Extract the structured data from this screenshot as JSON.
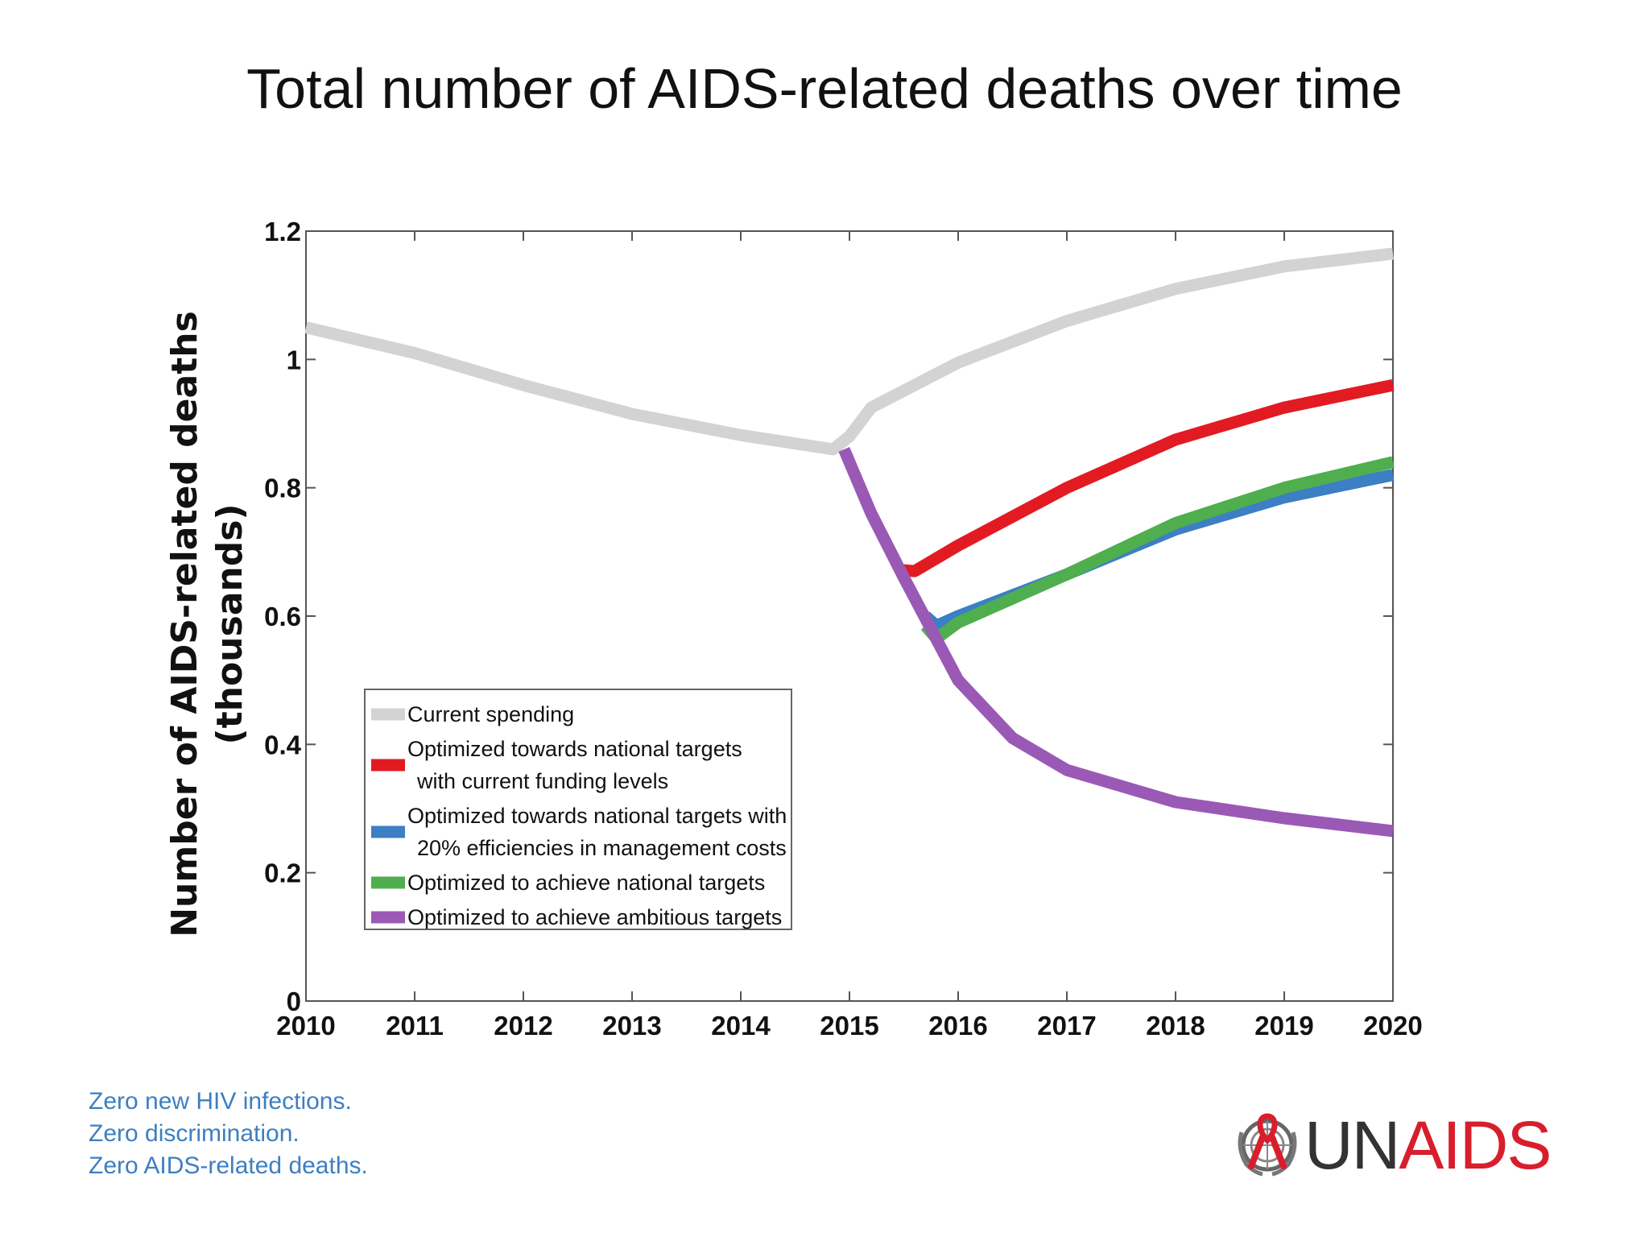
{
  "slide_title": "Total number of AIDS-related deaths over time",
  "chart_data": {
    "type": "line",
    "ylabel": [
      "Number of AIDS-related deaths",
      "(thousands)"
    ],
    "xlim": [
      2010,
      2020
    ],
    "ylim": [
      0,
      1.2
    ],
    "x_ticks": [
      "2010",
      "2011",
      "2012",
      "2013",
      "2014",
      "2015",
      "2016",
      "2017",
      "2018",
      "2019",
      "2020"
    ],
    "y_ticks": [
      "0",
      "0.2",
      "0.4",
      "0.6",
      "0.8",
      "1",
      "1.2"
    ],
    "legend_position": "lower-left",
    "series": [
      {
        "name": "Current spending",
        "color": "#d3d3d3",
        "points": [
          [
            2010,
            1.05
          ],
          [
            2011,
            1.01
          ],
          [
            2012,
            0.96
          ],
          [
            2013,
            0.915
          ],
          [
            2014,
            0.882
          ],
          [
            2014.85,
            0.86
          ],
          [
            2015,
            0.88
          ],
          [
            2015.2,
            0.925
          ],
          [
            2016,
            0.995
          ],
          [
            2017,
            1.06
          ],
          [
            2018,
            1.11
          ],
          [
            2019,
            1.145
          ],
          [
            2020,
            1.165
          ]
        ]
      },
      {
        "name": "Optimized towards national targets\nwith current funding levels",
        "color": "#e21b23",
        "points": [
          [
            2015.45,
            0.672
          ],
          [
            2015.6,
            0.67
          ],
          [
            2016,
            0.71
          ],
          [
            2017,
            0.8
          ],
          [
            2018,
            0.875
          ],
          [
            2019,
            0.925
          ],
          [
            2020,
            0.96
          ]
        ]
      },
      {
        "name": "Optimized towards national targets with\n20% efficiencies in management costs",
        "color": "#3c7fc4",
        "points": [
          [
            2015.7,
            0.6
          ],
          [
            2015.8,
            0.585
          ],
          [
            2016,
            0.6
          ],
          [
            2017,
            0.665
          ],
          [
            2018,
            0.735
          ],
          [
            2019,
            0.785
          ],
          [
            2020,
            0.82
          ]
        ]
      },
      {
        "name": "Optimized to achieve national targets",
        "color": "#4fae4e",
        "points": [
          [
            2015.7,
            0.585
          ],
          [
            2015.8,
            0.565
          ],
          [
            2016,
            0.59
          ],
          [
            2017,
            0.665
          ],
          [
            2018,
            0.745
          ],
          [
            2019,
            0.8
          ],
          [
            2020,
            0.84
          ]
        ]
      },
      {
        "name": "Optimized to achieve ambitious targets",
        "color": "#9b59b6",
        "points": [
          [
            2014.95,
            0.86
          ],
          [
            2015.2,
            0.76
          ],
          [
            2015.5,
            0.66
          ],
          [
            2016,
            0.5
          ],
          [
            2016.5,
            0.41
          ],
          [
            2017,
            0.36
          ],
          [
            2018,
            0.31
          ],
          [
            2019,
            0.285
          ],
          [
            2020,
            0.265
          ]
        ]
      }
    ]
  },
  "tagline": [
    "Zero new HIV infections.",
    "Zero discrimination.",
    "Zero AIDS-related deaths."
  ],
  "logo": {
    "un": "UN",
    "aids": "AIDS",
    "emblem_icon": "un-emblem-red-ribbon-icon"
  }
}
